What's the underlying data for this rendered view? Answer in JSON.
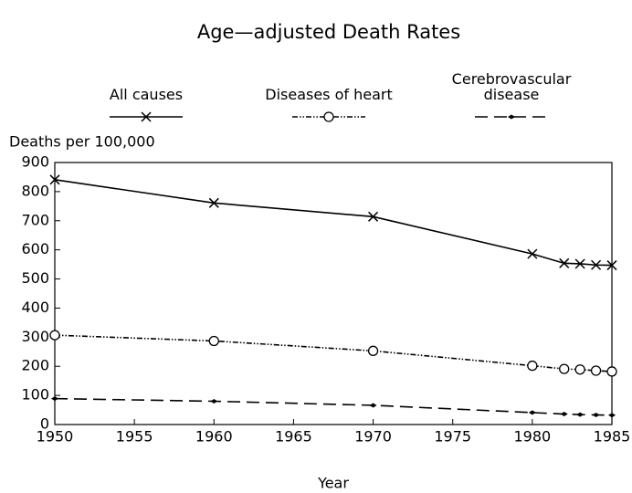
{
  "chart_data": {
    "type": "line",
    "title": "Age—adjusted Death Rates",
    "y_label": "Deaths per 100,000",
    "x_label": "Year",
    "x": [
      1950,
      1960,
      1970,
      1980,
      1982,
      1983,
      1984,
      1985
    ],
    "series": [
      {
        "name": "All causes",
        "color": "#000000",
        "line_style": "solid",
        "marker": "x",
        "values": [
          841,
          761,
          714,
          586,
          554,
          552,
          548,
          547
        ]
      },
      {
        "name": "Diseases of heart",
        "color": "#000000",
        "line_style": "dash-dot-dot",
        "marker": "o",
        "values": [
          307,
          287,
          253,
          202,
          191,
          189,
          185,
          182
        ]
      },
      {
        "name": "Cerebrovascular disease",
        "color": "#000000",
        "line_style": "dashed",
        "marker": "dot",
        "values": [
          89,
          80,
          66,
          41,
          36,
          34,
          33,
          32
        ]
      }
    ],
    "xlim": [
      1950,
      1985
    ],
    "xticks": [
      1950,
      1955,
      1960,
      1965,
      1970,
      1975,
      1980,
      1985
    ],
    "ylim": [
      0,
      900
    ],
    "yticks": [
      0,
      100,
      200,
      300,
      400,
      500,
      600,
      700,
      800,
      900
    ],
    "grid": false,
    "legend": "top"
  }
}
